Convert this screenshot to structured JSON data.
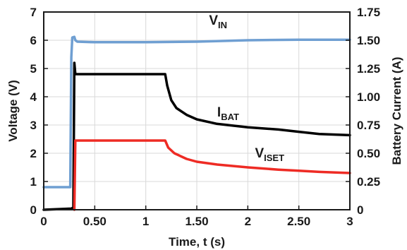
{
  "chart_data": {
    "type": "line",
    "title": "",
    "xlabel": "Time, t (s)",
    "ylabel_left": "Voltage (V)",
    "ylabel_right": "Battery Current (A)",
    "xlim": [
      0,
      3
    ],
    "ylim_left": [
      0,
      7
    ],
    "ylim_right": [
      0,
      1.75
    ],
    "grid": true,
    "legend": "inline labels",
    "x_ticks": [
      0,
      0.5,
      1,
      1.5,
      2,
      2.5,
      3
    ],
    "x_tick_labels": [
      "0",
      "0.50",
      "1",
      "1.50",
      "2",
      "2.50",
      "3"
    ],
    "y_left_ticks": [
      0,
      1,
      2,
      3,
      4,
      5,
      6,
      7
    ],
    "y_left_tick_labels": [
      "0",
      "1",
      "2",
      "3",
      "4",
      "5",
      "6",
      "7"
    ],
    "y_right_ticks": [
      0,
      0.25,
      0.5,
      0.75,
      1.0,
      1.25,
      1.5,
      1.75
    ],
    "y_right_tick_labels": [
      "0",
      "0.25",
      "0.50",
      "0.75",
      "1.00",
      "1.25",
      "1.50",
      "1.75"
    ],
    "series": [
      {
        "name": "V",
        "name_sub": "IN",
        "axis": "left",
        "color": "#6f9fd2",
        "label_pos": [
          1.62,
          6.55
        ],
        "points": [
          [
            0,
            0.8
          ],
          [
            0.26,
            0.8
          ],
          [
            0.27,
            5.4
          ],
          [
            0.28,
            6.1
          ],
          [
            0.3,
            6.12
          ],
          [
            0.31,
            6.0
          ],
          [
            0.33,
            5.95
          ],
          [
            0.5,
            5.93
          ],
          [
            1.0,
            5.93
          ],
          [
            1.5,
            5.95
          ],
          [
            2.0,
            6.0
          ],
          [
            2.5,
            6.02
          ],
          [
            3.0,
            6.02
          ]
        ]
      },
      {
        "name": "I",
        "name_sub": "BAT",
        "axis": "right",
        "color": "#000000",
        "label_pos": [
          1.7,
          3.3
        ],
        "points": [
          [
            0,
            0
          ],
          [
            0.27,
            0.01
          ],
          [
            0.29,
            0.02
          ],
          [
            0.3,
            1.3
          ],
          [
            0.31,
            1.2
          ],
          [
            0.5,
            1.2
          ],
          [
            1.0,
            1.2
          ],
          [
            1.19,
            1.2
          ],
          [
            1.21,
            1.1
          ],
          [
            1.25,
            0.97
          ],
          [
            1.3,
            0.9
          ],
          [
            1.4,
            0.84
          ],
          [
            1.5,
            0.8
          ],
          [
            1.7,
            0.76
          ],
          [
            2.0,
            0.73
          ],
          [
            2.3,
            0.71
          ],
          [
            2.5,
            0.69
          ],
          [
            2.7,
            0.67
          ],
          [
            3.0,
            0.66
          ]
        ]
      },
      {
        "name": "V",
        "name_sub": "ISET",
        "axis": "left",
        "color": "#ee2b24",
        "label_pos": [
          2.07,
          1.85
        ],
        "points": [
          [
            0.3,
            0
          ],
          [
            0.31,
            2.45
          ],
          [
            0.5,
            2.45
          ],
          [
            1.0,
            2.45
          ],
          [
            1.19,
            2.45
          ],
          [
            1.22,
            2.2
          ],
          [
            1.28,
            2.0
          ],
          [
            1.4,
            1.8
          ],
          [
            1.5,
            1.7
          ],
          [
            1.7,
            1.6
          ],
          [
            2.0,
            1.5
          ],
          [
            2.3,
            1.42
          ],
          [
            2.5,
            1.38
          ],
          [
            2.7,
            1.34
          ],
          [
            3.0,
            1.3
          ]
        ]
      }
    ]
  }
}
